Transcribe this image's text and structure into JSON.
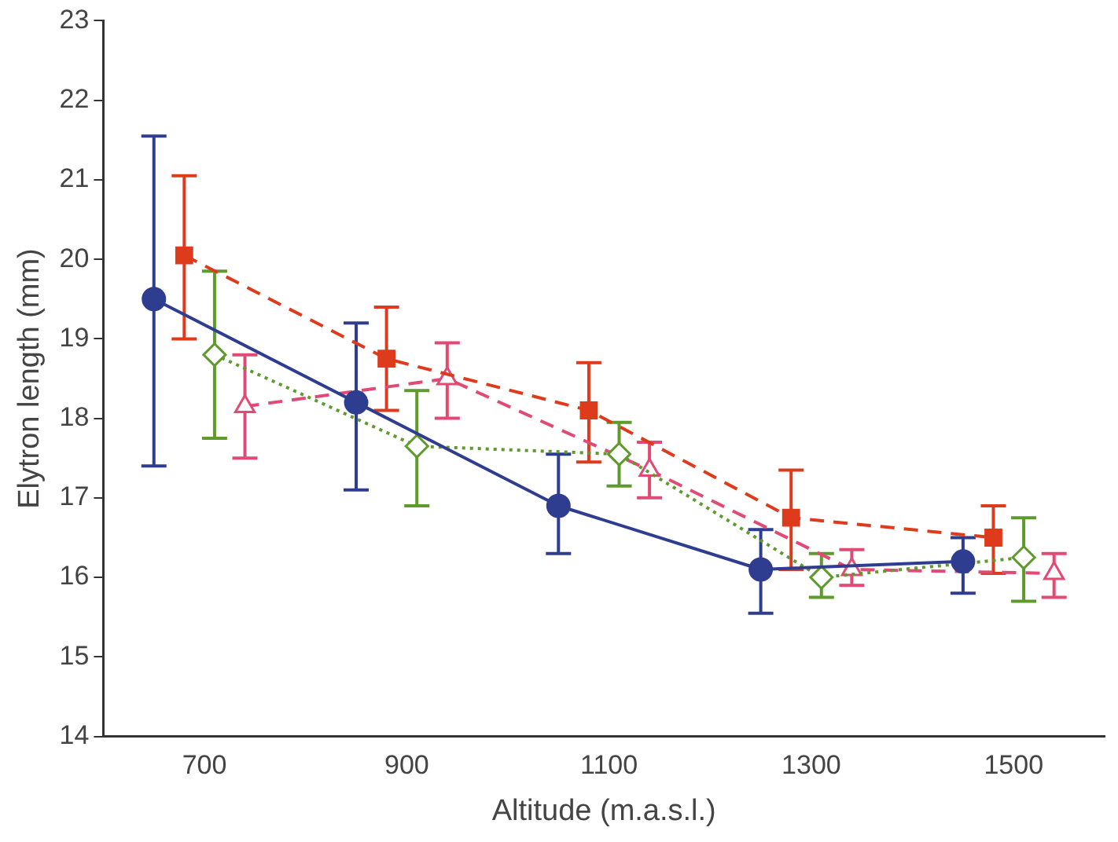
{
  "chart_data": {
    "type": "line",
    "xlabel": "Altitude (m.a.s.l.)",
    "ylabel": "Elytron length (mm)",
    "xlim": [
      600,
      1590
    ],
    "xticks": [
      700,
      900,
      1100,
      1300,
      1500
    ],
    "ylim": [
      14,
      23
    ],
    "yticks": [
      14,
      15,
      16,
      17,
      18,
      19,
      20,
      21,
      22,
      23
    ],
    "grid": false,
    "legend": false,
    "series": [
      {
        "color": "#2e3d8f",
        "marker": "circle",
        "line_style": "solid",
        "x": [
          650,
          850,
          1050,
          1250,
          1450
        ],
        "values": [
          19.5,
          18.2,
          16.9,
          16.1,
          16.2
        ],
        "errors": [
          [
            17.4,
            21.55
          ],
          [
            17.1,
            19.2
          ],
          [
            16.3,
            17.55
          ],
          [
            15.55,
            16.6
          ],
          [
            15.8,
            16.5
          ]
        ]
      },
      {
        "color": "#de3a1c",
        "marker": "square",
        "line_style": "dashed",
        "x": [
          680,
          880,
          1080,
          1280,
          1480
        ],
        "values": [
          20.05,
          18.75,
          18.1,
          16.75,
          16.5
        ],
        "errors": [
          [
            19.0,
            21.05
          ],
          [
            18.1,
            19.4
          ],
          [
            17.45,
            18.7
          ],
          [
            16.1,
            17.35
          ],
          [
            16.05,
            16.9
          ]
        ]
      },
      {
        "color": "#5e9a2c",
        "marker": "diamond",
        "line_style": "dotted",
        "x": [
          710,
          910,
          1110,
          1310,
          1510
        ],
        "values": [
          18.8,
          17.65,
          17.55,
          16.0,
          16.25
        ],
        "errors": [
          [
            17.75,
            19.85
          ],
          [
            16.9,
            18.35
          ],
          [
            17.15,
            17.95
          ],
          [
            15.75,
            16.3
          ],
          [
            15.7,
            16.75
          ]
        ]
      },
      {
        "color": "#e04a74",
        "marker": "triangle",
        "line_style": "dashed",
        "x": [
          740,
          940,
          1140,
          1340,
          1540
        ],
        "values": [
          18.15,
          18.5,
          17.35,
          16.1,
          16.05
        ],
        "errors": [
          [
            17.5,
            18.8
          ],
          [
            18.0,
            18.95
          ],
          [
            17.0,
            17.7
          ],
          [
            15.9,
            16.35
          ],
          [
            15.75,
            16.3
          ]
        ]
      }
    ]
  }
}
